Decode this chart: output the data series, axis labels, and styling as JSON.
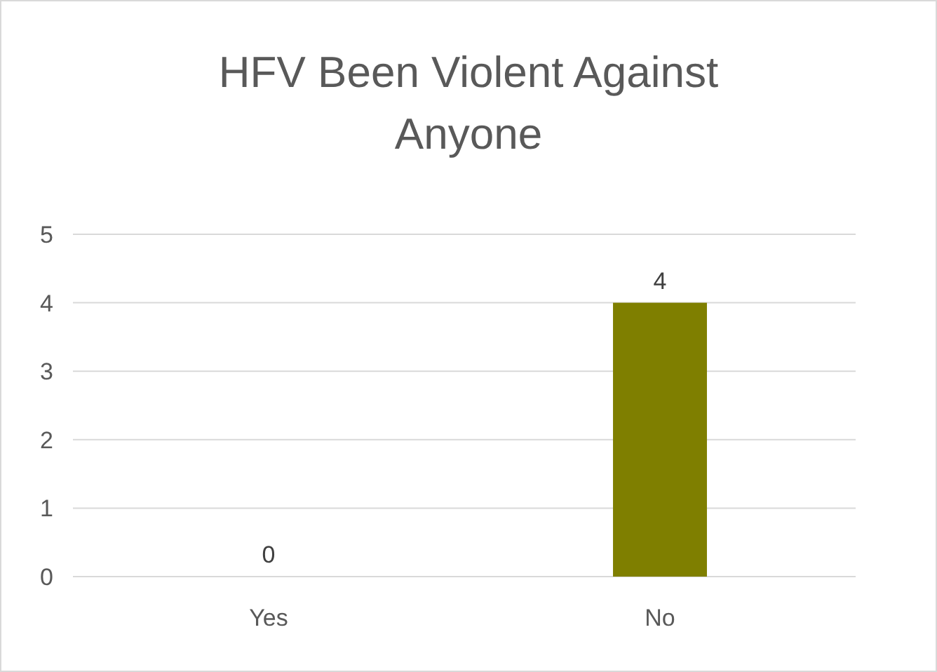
{
  "chart_data": {
    "type": "bar",
    "title": "HFV Been Violent Against Anyone",
    "categories": [
      "Yes",
      "No"
    ],
    "values": [
      0,
      4
    ],
    "color": "#7f7f00",
    "ylim": [
      0,
      5
    ],
    "yticks": [
      0,
      1,
      2,
      3,
      4,
      5
    ],
    "grid": "y",
    "data_labels": true
  }
}
